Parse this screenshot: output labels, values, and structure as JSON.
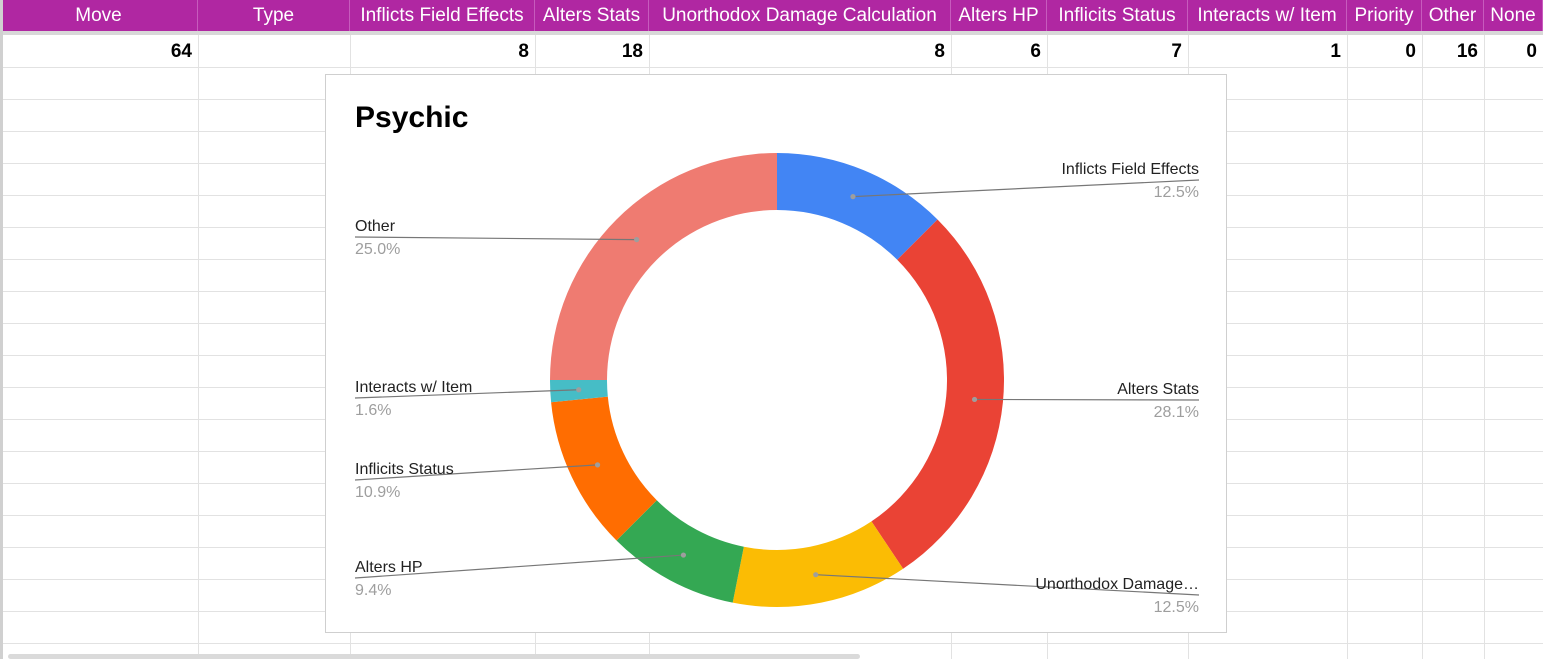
{
  "sheet": {
    "headers": [
      "Move",
      "Type",
      "Inflicts Field Effects",
      "Alters Stats",
      "Unorthodox Damage Calculation",
      "Alters HP",
      "Inflicits Status",
      "Interacts w/ Item",
      "Priority",
      "Other",
      "None"
    ],
    "row": [
      "64",
      "",
      "8",
      "18",
      "8",
      "6",
      "7",
      "1",
      "0",
      "16",
      "0"
    ],
    "header_color": "#b027a2"
  },
  "chart_data": {
    "type": "pie",
    "donut": true,
    "title": "Psychic",
    "slices": [
      {
        "label": "Inflicts Field Effects",
        "display_label": "Inflicts Field Effects",
        "value": 8,
        "percent": "12.5%",
        "color": "#4285f4"
      },
      {
        "label": "Alters Stats",
        "display_label": "Alters Stats",
        "value": 18,
        "percent": "28.1%",
        "color": "#ea4335"
      },
      {
        "label": "Unorthodox Damage Calculation",
        "display_label": "Unorthodox Damage…",
        "value": 8,
        "percent": "12.5%",
        "color": "#fbbc04"
      },
      {
        "label": "Alters HP",
        "display_label": "Alters HP",
        "value": 6,
        "percent": "9.4%",
        "color": "#34a853"
      },
      {
        "label": "Inflicits Status",
        "display_label": "Inflicits Status",
        "value": 7,
        "percent": "10.9%",
        "color": "#ff6d01"
      },
      {
        "label": "Interacts w/ Item",
        "display_label": "Interacts w/ Item",
        "value": 1,
        "percent": "1.6%",
        "color": "#46bdc6"
      },
      {
        "label": "Other",
        "display_label": "Other",
        "value": 16,
        "percent": "25.0%",
        "color": "#ef7b71"
      }
    ]
  }
}
